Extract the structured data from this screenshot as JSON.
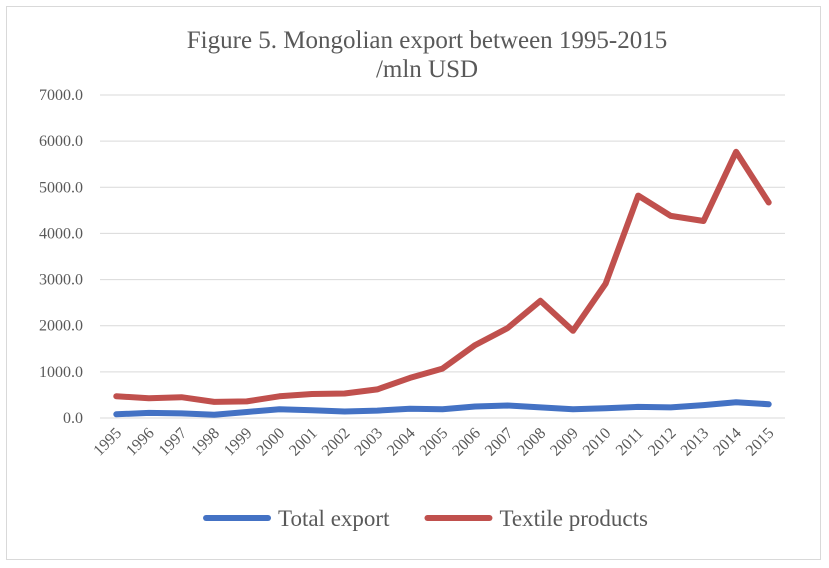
{
  "chart_data": {
    "type": "line",
    "title": [
      "Figure 5. Mongolian export between 1995-2015",
      "/mln USD"
    ],
    "xlabel": "",
    "ylabel": "",
    "ylim": [
      0,
      7000
    ],
    "y_ticks": [
      "0.0",
      "1000.0",
      "2000.0",
      "3000.0",
      "4000.0",
      "5000.0",
      "6000.0",
      "7000.0"
    ],
    "y_tick_values": [
      0,
      1000,
      2000,
      3000,
      4000,
      5000,
      6000,
      7000
    ],
    "grid": true,
    "legend_position": "bottom",
    "categories": [
      "1995",
      "1996",
      "1997",
      "1998",
      "1999",
      "2000",
      "2001",
      "2002",
      "2003",
      "2004",
      "2005",
      "2006",
      "2007",
      "2008",
      "2009",
      "2010",
      "2011",
      "2012",
      "2013",
      "2014",
      "2015"
    ],
    "series": [
      {
        "name": "Total export",
        "color": "#4472C4",
        "values": [
          80,
          110,
          100,
          70,
          130,
          190,
          170,
          140,
          160,
          200,
          190,
          250,
          270,
          230,
          190,
          210,
          240,
          230,
          280,
          340,
          300
        ]
      },
      {
        "name": "Textile products",
        "color": "#C0504D",
        "values": [
          470,
          430,
          450,
          350,
          360,
          470,
          520,
          530,
          620,
          870,
          1070,
          1580,
          1950,
          2540,
          1890,
          2910,
          4820,
          4380,
          4270,
          5770,
          4670
        ]
      }
    ]
  }
}
